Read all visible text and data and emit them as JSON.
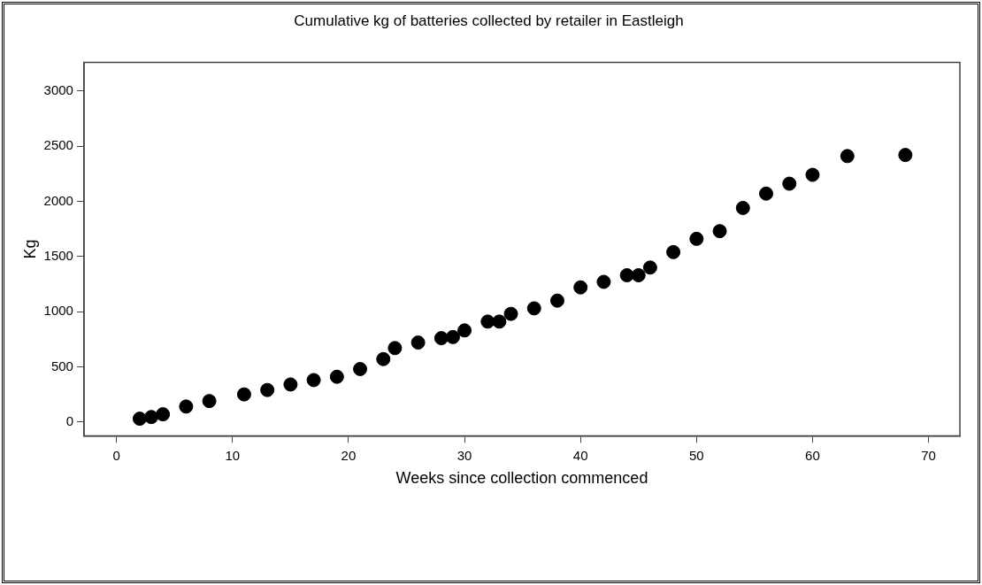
{
  "chart_data": {
    "type": "scatter",
    "title": "Cumulative kg of batteries collected by retailer in Eastleigh",
    "xlabel": "Weeks since collection commenced",
    "ylabel": "Kg",
    "x": [
      2,
      3,
      4,
      6,
      8,
      11,
      13,
      15,
      17,
      19,
      21,
      23,
      24,
      26,
      28,
      29,
      30,
      32,
      33,
      34,
      36,
      38,
      40,
      42,
      44,
      45,
      46,
      48,
      50,
      52,
      54,
      56,
      58,
      60,
      63,
      68
    ],
    "values": [
      30,
      45,
      70,
      140,
      190,
      250,
      290,
      340,
      380,
      410,
      480,
      570,
      670,
      720,
      760,
      770,
      830,
      910,
      910,
      980,
      1030,
      1100,
      1220,
      1270,
      1330,
      1330,
      1400,
      1540,
      1660,
      1730,
      1940,
      2070,
      2160,
      2240,
      2410,
      2420
    ],
    "color": "#000000",
    "marker": "circle",
    "grid": false,
    "legend": false,
    "xlim": [
      -2.8,
      72.7
    ],
    "xticks": [
      0,
      10,
      20,
      30,
      40,
      50,
      60,
      70
    ],
    "ylim": [
      -125,
      3260
    ],
    "yticks": [
      0,
      500,
      1000,
      1500,
      2000,
      2500,
      3000
    ]
  }
}
